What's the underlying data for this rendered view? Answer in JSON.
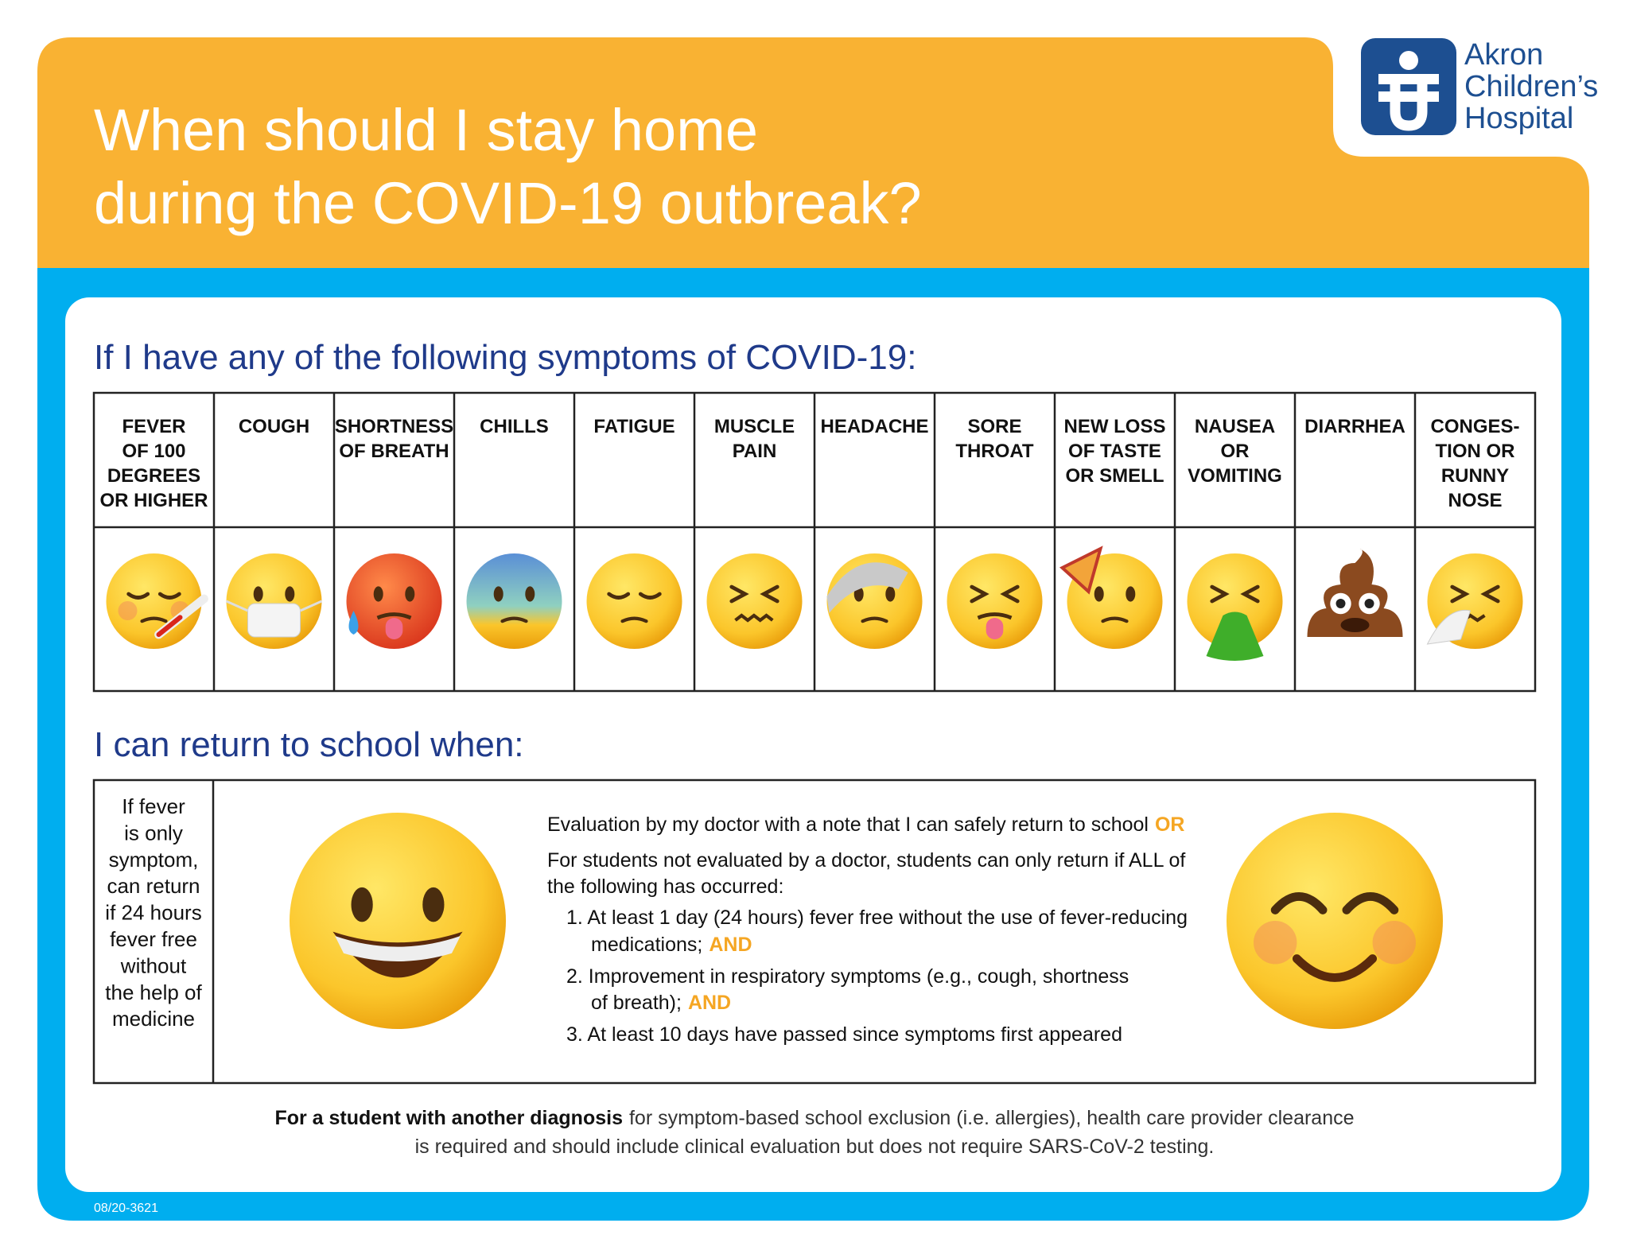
{
  "header": {
    "title_lines": [
      "When should I stay home",
      "during the COVID-19 outbreak?"
    ],
    "logo_lines": [
      "Akron",
      "Children’s",
      "Hospital"
    ]
  },
  "symptoms": {
    "heading": "If I have any of the following symptoms of COVID-19:",
    "items": [
      [
        "FEVER",
        "OF 100",
        "DEGREES",
        "OR HIGHER"
      ],
      [
        "COUGH"
      ],
      [
        "SHORTNESS",
        "OF BREATH"
      ],
      [
        "CHILLS"
      ],
      [
        "FATIGUE"
      ],
      [
        "MUSCLE",
        "PAIN"
      ],
      [
        "HEADACHE"
      ],
      [
        "SORE",
        "THROAT"
      ],
      [
        "NEW LOSS",
        "OF TASTE",
        "OR SMELL"
      ],
      [
        "NAUSEA",
        "OR",
        "VOMITING"
      ],
      [
        "DIARRHEA"
      ],
      [
        "CONGES-",
        "TION OR",
        "RUNNY",
        "NOSE"
      ]
    ]
  },
  "return": {
    "heading": "I can return to school when:",
    "fever_note": [
      "If fever",
      "is only",
      "symptom,",
      "can return",
      "if 24 hours",
      "fever free",
      "without",
      "the help of",
      "medicine"
    ],
    "doctor": {
      "lines": [
        "Evaluation by my doctor with a note that I can safely return to school"
      ],
      "emphasis": "OR"
    },
    "intro": {
      "lines": [
        "For students not evaluated by a doctor, students can only return if ALL of",
        "the following has occurred:"
      ]
    },
    "steps": [
      {
        "lines": [
          "1. At least 1 day (24 hours) fever free without the use of fever-reducing",
          "medications;"
        ],
        "emphasis": "AND"
      },
      {
        "lines": [
          "2. Improvement in respiratory symptoms (e.g., cough, shortness",
          "of breath);"
        ],
        "emphasis": "AND"
      },
      {
        "lines": [
          "3. At least 10 days have passed since symptoms first appeared"
        ]
      }
    ]
  },
  "footnote": {
    "bold": "For a student with another diagnosis",
    "lines": [
      "for symptom-based school exclusion (i.e. allergies), health care provider clearance",
      "is required and should include clinical evaluation but does not require SARS-CoV-2 testing."
    ]
  },
  "code": "08/20-3621"
}
